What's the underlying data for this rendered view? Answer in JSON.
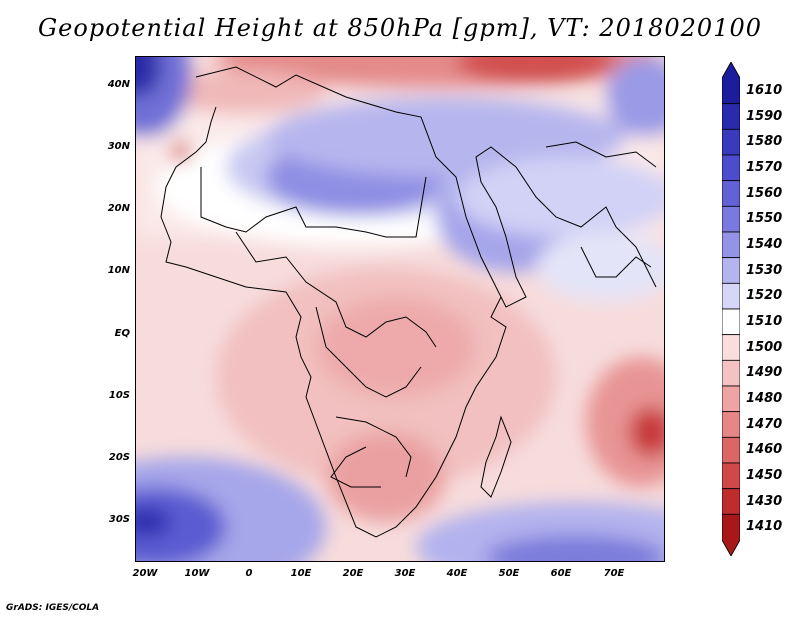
{
  "title": "Geopotential Height at 850hPa [gpm], VT: 2018020100",
  "credit": "GrADS: IGES/COLA",
  "lat_labels": [
    "40N",
    "30N",
    "20N",
    "10N",
    "EQ",
    "10S",
    "20S",
    "30S"
  ],
  "lon_labels": [
    "20W",
    "10W",
    "0",
    "10E",
    "20E",
    "30E",
    "40E",
    "50E",
    "60E",
    "70E"
  ],
  "colorbar": {
    "levels": [
      "1610",
      "1590",
      "1580",
      "1570",
      "1560",
      "1550",
      "1540",
      "1530",
      "1520",
      "1510",
      "1500",
      "1490",
      "1480",
      "1470",
      "1460",
      "1450",
      "1430",
      "1410"
    ],
    "colors": [
      "#1c1c9c",
      "#2a2aae",
      "#3a3abe",
      "#4c4ccc",
      "#6262d6",
      "#7a7ade",
      "#9494e6",
      "#b4b4ee",
      "#d6d6f6",
      "#ffffff",
      "#fadede",
      "#f4c2c2",
      "#eea4a4",
      "#e68686",
      "#dc6666",
      "#d04848",
      "#c02c2c",
      "#a81818"
    ]
  }
}
